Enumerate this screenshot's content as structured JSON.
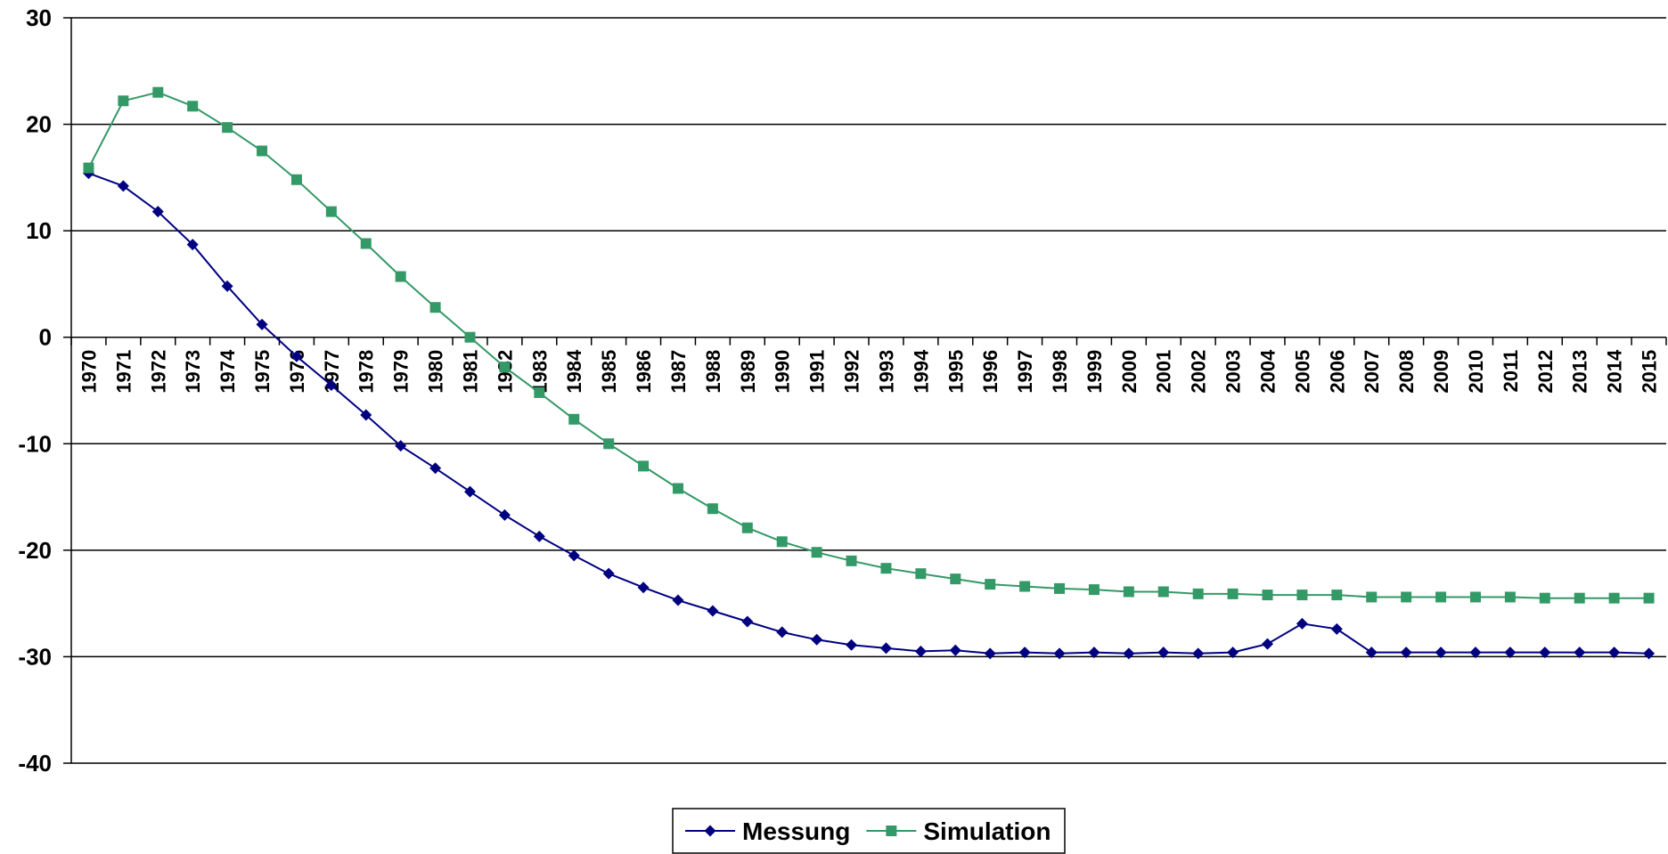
{
  "chart_data": {
    "type": "line",
    "x": [
      1970,
      1971,
      1972,
      1973,
      1974,
      1975,
      1976,
      1977,
      1978,
      1979,
      1980,
      1981,
      1982,
      1983,
      1984,
      1985,
      1986,
      1987,
      1988,
      1989,
      1990,
      1991,
      1992,
      1993,
      1994,
      1995,
      1996,
      1997,
      1998,
      1999,
      2000,
      2001,
      2002,
      2003,
      2004,
      2005,
      2006,
      2007,
      2008,
      2009,
      2010,
      2011,
      2012,
      2013,
      2014,
      2015
    ],
    "x_tick_labels": [
      "1970",
      "1971",
      "1972",
      "1973",
      "1974",
      "1975",
      "1976",
      "1977",
      "1978",
      "1979",
      "1980",
      "1981",
      "1982",
      "1983",
      "1984",
      "1985",
      "1986",
      "1987",
      "1988",
      "1989",
      "1990",
      "1991",
      "1992",
      "1993",
      "1994",
      "1995",
      "1996",
      "1997",
      "1998",
      "1999",
      "2000",
      "2001",
      "2002",
      "2003",
      "2004",
      "2005",
      "2006",
      "2007",
      "2008",
      "2009",
      "2010",
      "2011",
      "2012",
      "2013",
      "2014",
      "2015"
    ],
    "y_ticks": [
      30,
      20,
      10,
      0,
      -10,
      -20,
      -30,
      -40
    ],
    "y_tick_labels": [
      "30",
      "20",
      "10",
      "0",
      "-10",
      "-20",
      "-30",
      "-40"
    ],
    "ylim": [
      -40,
      30
    ],
    "grid": "horizontal",
    "legend_position": "bottom-center",
    "title": "",
    "xlabel": "",
    "ylabel": "",
    "series": [
      {
        "name": "Messung",
        "color": "#000080",
        "marker": "diamond",
        "values": [
          15.4,
          14.2,
          11.8,
          8.7,
          4.8,
          1.2,
          -1.8,
          -4.5,
          -7.3,
          -10.2,
          -12.3,
          -14.5,
          -16.7,
          -18.7,
          -20.5,
          -22.2,
          -23.5,
          -24.7,
          -25.7,
          -26.7,
          -27.7,
          -28.4,
          -28.9,
          -29.2,
          -29.5,
          -29.4,
          -29.7,
          -29.6,
          -29.7,
          -29.6,
          -29.7,
          -29.6,
          -29.7,
          -29.6,
          -28.8,
          -26.9,
          -27.4,
          -29.6,
          -29.6,
          -29.6,
          -29.6,
          -29.6,
          -29.6,
          -29.6,
          -29.6,
          -29.7
        ]
      },
      {
        "name": "Simulation",
        "color": "#339966",
        "marker": "square",
        "values": [
          15.9,
          22.2,
          23.0,
          21.7,
          19.7,
          17.5,
          14.8,
          11.8,
          8.8,
          5.7,
          2.8,
          0.0,
          -2.8,
          -5.2,
          -7.7,
          -10.0,
          -12.1,
          -14.2,
          -16.1,
          -17.9,
          -19.2,
          -20.2,
          -21.0,
          -21.7,
          -22.2,
          -22.7,
          -23.2,
          -23.4,
          -23.6,
          -23.7,
          -23.9,
          -23.9,
          -24.1,
          -24.1,
          -24.2,
          -24.2,
          -24.2,
          -24.4,
          -24.4,
          -24.4,
          -24.4,
          -24.4,
          -24.5,
          -24.5,
          -24.5,
          -24.5
        ]
      }
    ]
  }
}
